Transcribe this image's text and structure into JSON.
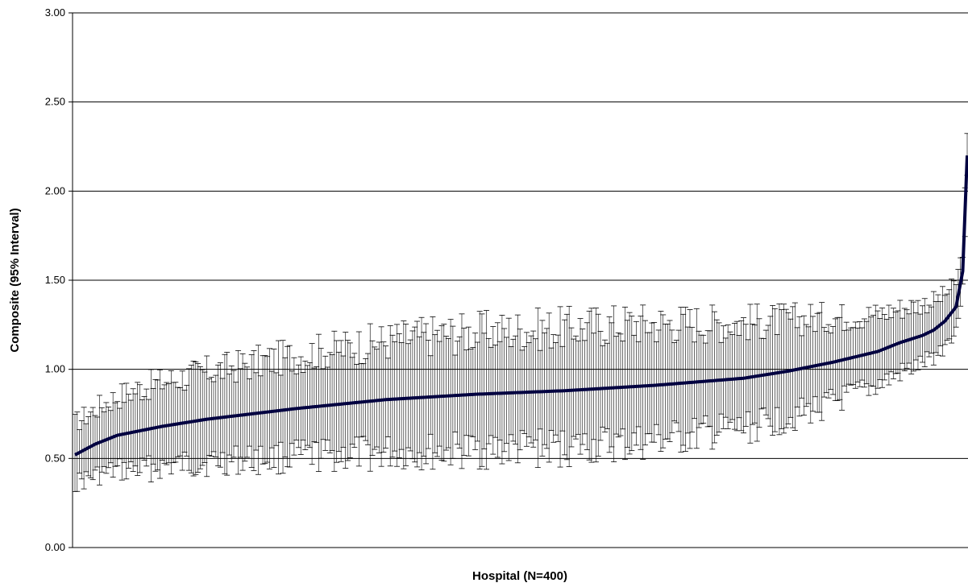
{
  "chart_data": {
    "type": "line",
    "xlabel": "Hospital (N=400)",
    "ylabel": "Composite (95% Interval)",
    "ylim": [
      0,
      3
    ],
    "yticks": [
      "0.00",
      "0.50",
      "1.00",
      "1.50",
      "2.00",
      "2.50",
      "3.00"
    ],
    "grid": "horizontal",
    "n_hospitals": 400,
    "line_color": "#000040",
    "errorbar_color": "#000000",
    "median_profile": {
      "rank": [
        1,
        10,
        20,
        40,
        60,
        80,
        100,
        140,
        180,
        220,
        260,
        300,
        320,
        340,
        360,
        370,
        380,
        385,
        390,
        395,
        398,
        400
      ],
      "composite": [
        0.52,
        0.58,
        0.63,
        0.68,
        0.72,
        0.75,
        0.78,
        0.83,
        0.86,
        0.88,
        0.91,
        0.95,
        0.99,
        1.04,
        1.1,
        1.15,
        1.19,
        1.22,
        1.27,
        1.35,
        1.55,
        2.2
      ]
    },
    "halfwidth_profile": {
      "rank": [
        1,
        30,
        80,
        160,
        250,
        300,
        330,
        360,
        380,
        395,
        400
      ],
      "halfwidth": [
        0.17,
        0.23,
        0.27,
        0.33,
        0.34,
        0.3,
        0.26,
        0.2,
        0.17,
        0.13,
        0.1
      ]
    }
  }
}
